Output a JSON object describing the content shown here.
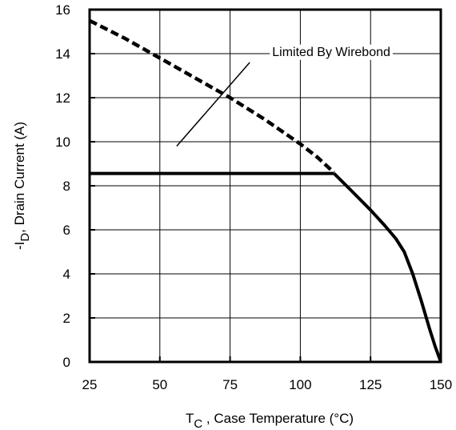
{
  "chart_data": {
    "type": "line",
    "xlabel": {
      "main": "T",
      "sub": "C",
      "rest": " , Case Temperature (°C)"
    },
    "ylabel": {
      "prefix": "-I",
      "sub": "D",
      "rest": ",  Drain Current (A)"
    },
    "xlim": [
      25,
      150
    ],
    "ylim": [
      0,
      16
    ],
    "xticks": [
      25,
      50,
      75,
      100,
      125,
      150
    ],
    "yticks": [
      0,
      2,
      4,
      6,
      8,
      10,
      12,
      14,
      16
    ],
    "grid": true,
    "annotation": {
      "text": "Limited By Wirebond",
      "x": 90,
      "y": 13.9,
      "leader": [
        [
          56,
          9.8
        ],
        [
          82,
          13.6
        ]
      ]
    },
    "series": [
      {
        "style": "dashed",
        "points": [
          [
            25,
            15.5
          ],
          [
            37.5,
            14.7
          ],
          [
            50,
            13.8
          ],
          [
            62.5,
            12.9
          ],
          [
            75,
            12.0
          ],
          [
            87.5,
            11.0
          ],
          [
            100,
            9.9
          ],
          [
            106,
            9.3
          ],
          [
            112,
            8.6
          ]
        ]
      },
      {
        "style": "solid",
        "points": [
          [
            25,
            8.56
          ],
          [
            112,
            8.56
          ]
        ]
      },
      {
        "style": "solid",
        "points": [
          [
            112,
            8.56
          ],
          [
            118,
            7.8
          ],
          [
            125,
            6.9
          ],
          [
            130,
            6.2
          ],
          [
            134,
            5.6
          ],
          [
            137,
            5.0
          ],
          [
            140,
            4.0
          ],
          [
            143,
            2.8
          ],
          [
            146,
            1.5
          ],
          [
            148,
            0.7
          ],
          [
            150,
            0
          ]
        ]
      }
    ]
  }
}
